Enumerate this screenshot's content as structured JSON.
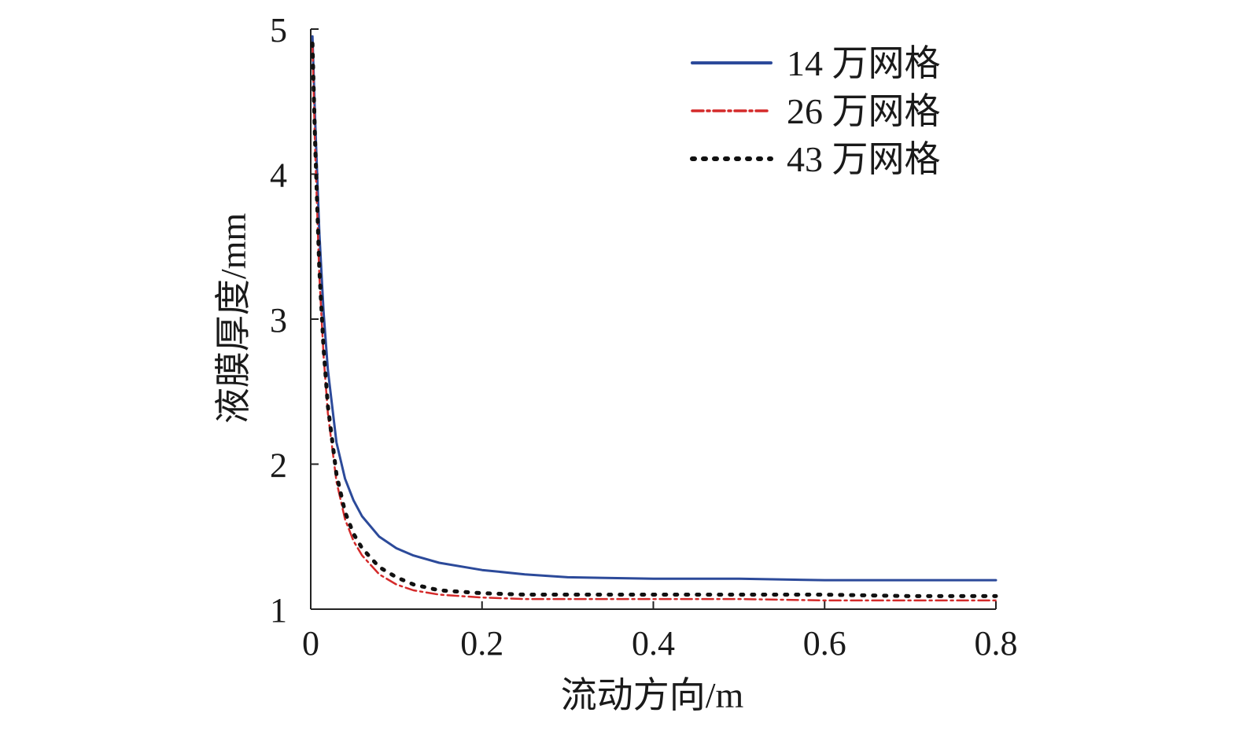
{
  "chart_data": {
    "type": "line",
    "title": "",
    "xlabel": "流动方向/m",
    "ylabel": "液膜厚度/mm",
    "xlim": [
      0,
      0.8
    ],
    "ylim": [
      1,
      5
    ],
    "x_ticks": [
      "0",
      "0.2",
      "0.4",
      "0.6",
      "0.8"
    ],
    "y_ticks": [
      "1",
      "2",
      "3",
      "4",
      "5"
    ],
    "legend_position": "top-right",
    "grid": false,
    "series": [
      {
        "name": "14 万网格",
        "color": "#2c4a9a",
        "style": "solid",
        "x": [
          0.002,
          0.005,
          0.01,
          0.015,
          0.02,
          0.03,
          0.04,
          0.05,
          0.06,
          0.08,
          0.1,
          0.12,
          0.15,
          0.2,
          0.25,
          0.3,
          0.4,
          0.5,
          0.6,
          0.7,
          0.8
        ],
        "y": [
          4.95,
          4.4,
          3.6,
          3.05,
          2.65,
          2.15,
          1.9,
          1.75,
          1.64,
          1.5,
          1.42,
          1.37,
          1.32,
          1.27,
          1.24,
          1.22,
          1.21,
          1.21,
          1.2,
          1.2,
          1.2
        ]
      },
      {
        "name": "26 万网格",
        "color": "#d42a2a",
        "style": "dashdot",
        "x": [
          0.002,
          0.005,
          0.01,
          0.015,
          0.02,
          0.03,
          0.04,
          0.05,
          0.06,
          0.08,
          0.1,
          0.12,
          0.15,
          0.2,
          0.25,
          0.3,
          0.4,
          0.5,
          0.6,
          0.7,
          0.8
        ],
        "y": [
          4.9,
          4.2,
          3.3,
          2.75,
          2.35,
          1.88,
          1.62,
          1.47,
          1.37,
          1.24,
          1.17,
          1.13,
          1.1,
          1.08,
          1.07,
          1.07,
          1.07,
          1.07,
          1.06,
          1.06,
          1.06
        ]
      },
      {
        "name": "43 万网格",
        "color": "#111111",
        "style": "dotted",
        "x": [
          0.002,
          0.005,
          0.01,
          0.015,
          0.02,
          0.03,
          0.04,
          0.05,
          0.06,
          0.08,
          0.1,
          0.12,
          0.15,
          0.2,
          0.25,
          0.3,
          0.4,
          0.5,
          0.6,
          0.7,
          0.8
        ],
        "y": [
          4.9,
          4.25,
          3.35,
          2.8,
          2.4,
          1.93,
          1.67,
          1.52,
          1.42,
          1.29,
          1.22,
          1.17,
          1.13,
          1.11,
          1.1,
          1.1,
          1.1,
          1.1,
          1.1,
          1.09,
          1.09
        ]
      }
    ]
  }
}
